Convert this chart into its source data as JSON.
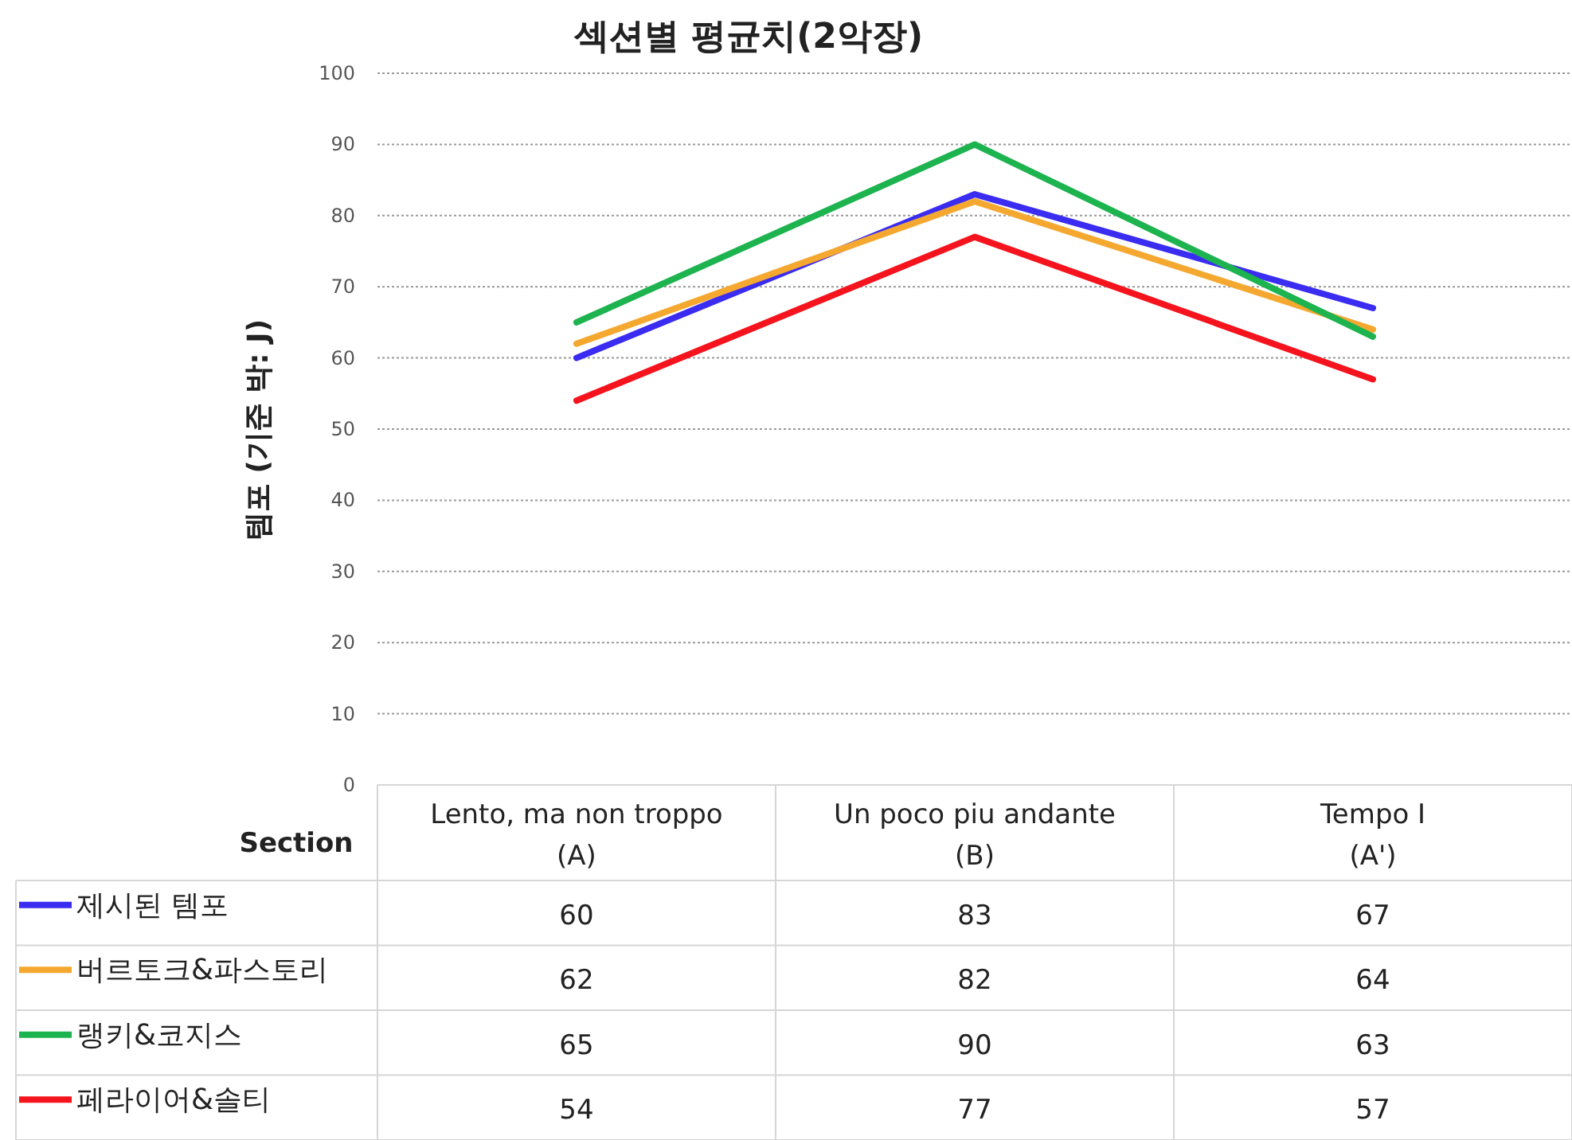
{
  "chart_data": {
    "type": "line",
    "title": "섹션별 평균치(2악장)",
    "ylabel": "템포 (기준 박: J)",
    "xlabel": "Section",
    "categories": [
      "Lento, ma non troppo\n(A)",
      "Un poco piu andante\n(B)",
      "Tempo I\n(A')"
    ],
    "series": [
      {
        "name": "제시된 템포",
        "color": "#3a2cf0",
        "values": [
          60,
          83,
          67
        ]
      },
      {
        "name": "버르토크&파스토리",
        "color": "#f5a830",
        "values": [
          62,
          82,
          64
        ]
      },
      {
        "name": "랭키&코지스",
        "color": "#1db34f",
        "values": [
          65,
          90,
          63
        ]
      },
      {
        "name": "페라이어&솔티",
        "color": "#f5141e",
        "values": [
          54,
          77,
          57
        ]
      }
    ],
    "ylim": [
      0,
      100
    ],
    "yticks": [
      0,
      10,
      20,
      30,
      40,
      50,
      60,
      70,
      80,
      90,
      100
    ],
    "grid": "y",
    "line_style": "solid",
    "marker": "none",
    "data_labels": true,
    "legend": "bottom"
  }
}
